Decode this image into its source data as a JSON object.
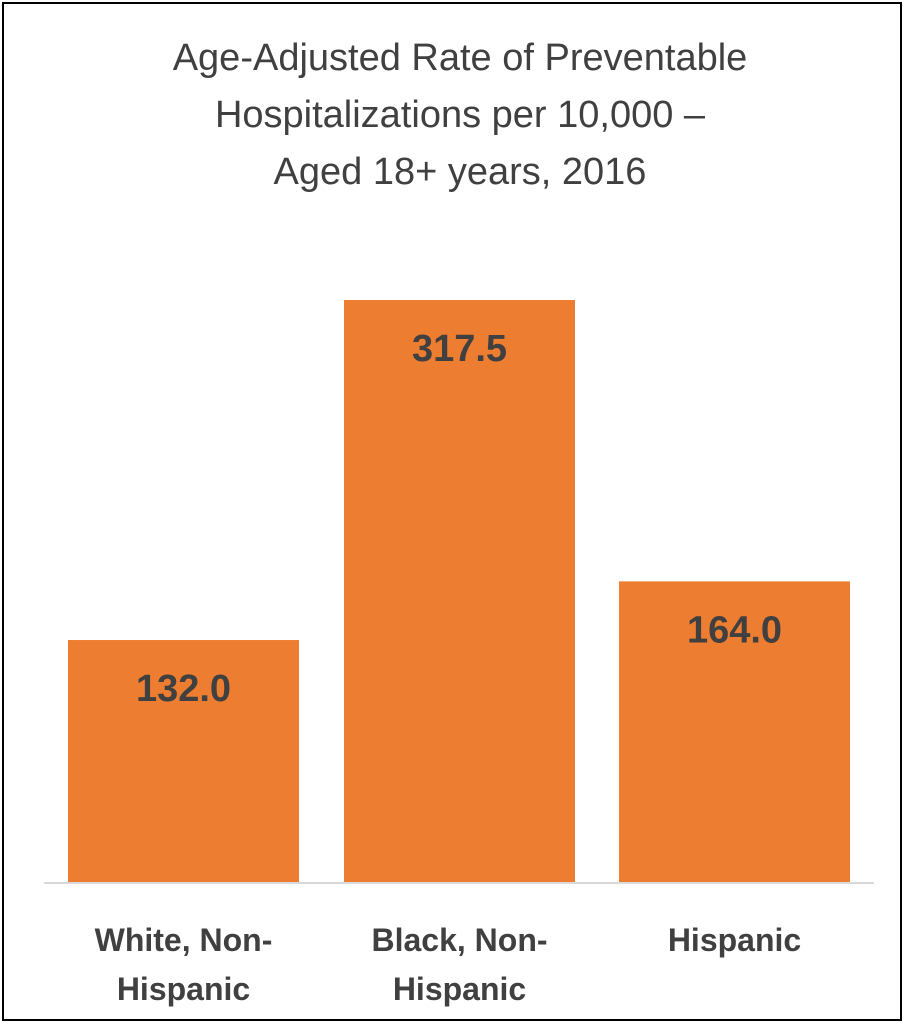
{
  "colors": {
    "bar": "#ED7D31",
    "axis": "#D9D9D9",
    "text": "#404040"
  },
  "chart_data": {
    "type": "bar",
    "title": "Age-Adjusted Rate of Preventable Hospitalizations per 10,000 – Aged 18+ years, 2016",
    "title_lines": [
      "Age-Adjusted Rate of Preventable",
      "Hospitalizations per 10,000 –",
      "Aged 18+ years, 2016"
    ],
    "categories": [
      "White, Non-Hispanic",
      "Black, Non-Hispanic",
      "Hispanic"
    ],
    "category_lines": [
      [
        "White, Non-",
        "Hispanic"
      ],
      [
        "Black, Non-",
        "Hispanic"
      ],
      [
        "Hispanic"
      ]
    ],
    "values": [
      132.0,
      317.5,
      164.0
    ],
    "value_labels": [
      "132.0",
      "317.5",
      "164.0"
    ],
    "xlabel": "",
    "ylabel": "",
    "ylim": [
      0,
      350
    ],
    "grid": false,
    "legend": "none"
  }
}
